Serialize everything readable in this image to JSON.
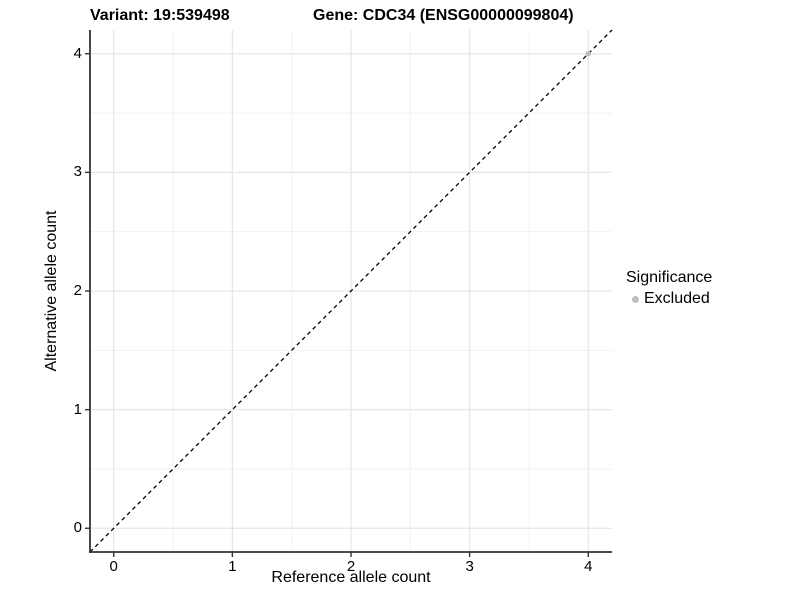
{
  "header": {
    "variant_label": "Variant: 19:539498",
    "gene_label": "Gene: CDC34 (ENSG00000099804)"
  },
  "chart_data": {
    "type": "scatter",
    "title": "Variant: 19:539498  Gene: CDC34 (ENSG00000099804)",
    "xlabel": "Reference allele count",
    "ylabel": "Alternative allele count",
    "xlim": [
      -0.2,
      4.2
    ],
    "ylim": [
      -0.2,
      4.2
    ],
    "xticks": [
      0,
      1,
      2,
      3,
      4
    ],
    "yticks": [
      0,
      1,
      2,
      3,
      4
    ],
    "minor_xticks": [
      0.5,
      1.5,
      2.5,
      3.5
    ],
    "minor_yticks": [
      0.5,
      1.5,
      2.5,
      3.5
    ],
    "grid": true,
    "series": [
      {
        "name": "Excluded",
        "color": "#bebebe",
        "points": [
          [
            4,
            4
          ]
        ]
      }
    ],
    "reference_line": {
      "kind": "identity y=x",
      "from": [
        -0.2,
        -0.2
      ],
      "to": [
        4.2,
        4.2
      ],
      "style": "dashed",
      "color": "#000000"
    },
    "legend": {
      "title": "Significance",
      "position": "right",
      "items": [
        {
          "label": "Excluded",
          "color": "#bebebe"
        }
      ]
    }
  },
  "colors": {
    "background": "#ffffff",
    "grid_major": "#e6e6e6",
    "grid_minor": "#f2f2f2",
    "axis_line": "#333333",
    "text": "#000000",
    "point": "#bebebe"
  }
}
